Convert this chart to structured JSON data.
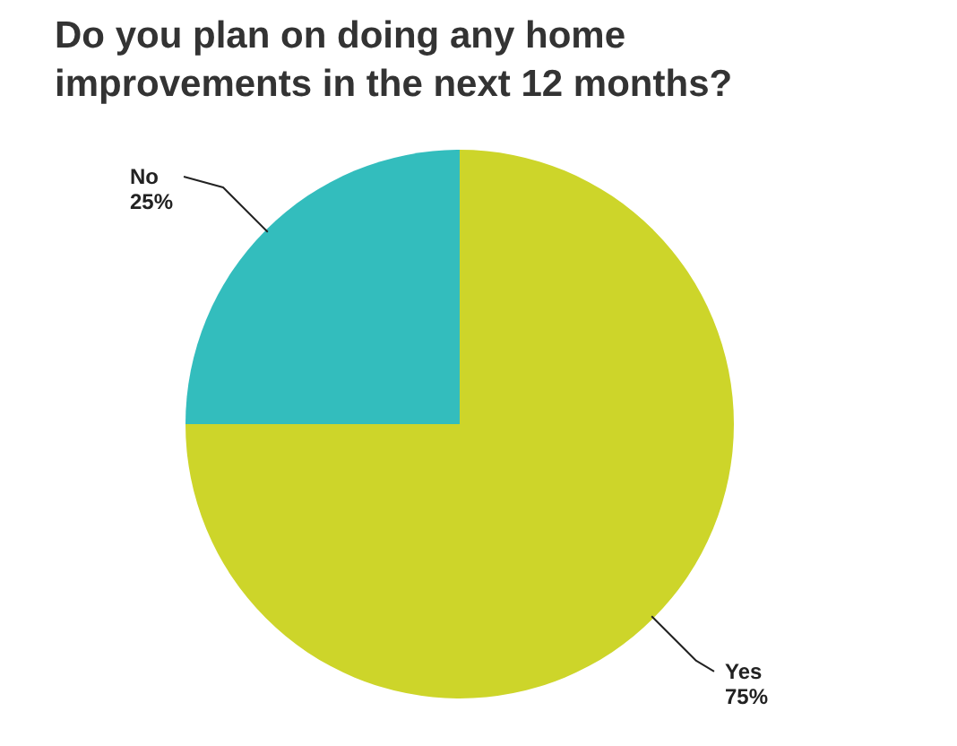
{
  "chart_data": {
    "type": "pie",
    "title": "Do you plan on doing any home improvements in the next 12 months?",
    "categories": [
      "Yes",
      "No"
    ],
    "values": [
      75,
      25
    ],
    "colors": [
      "#cdd52a",
      "#33bdbd"
    ],
    "value_labels": [
      "75%",
      "25%"
    ]
  }
}
